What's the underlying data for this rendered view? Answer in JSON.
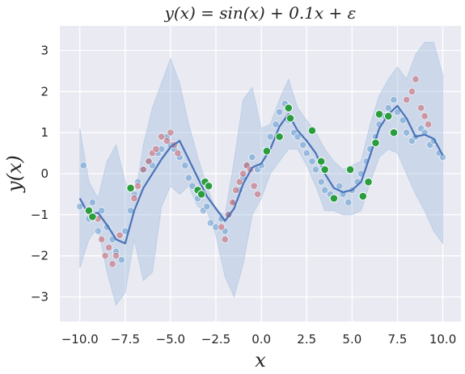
{
  "chart_data": {
    "type": "scatter",
    "title": "y(x) = sin(x) + 0.1x + ε",
    "xlabel": "x",
    "ylabel": "y(x)",
    "xlim": [
      -11.1,
      11.0
    ],
    "ylim": [
      -3.6,
      3.6
    ],
    "xticks": [
      -10.0,
      -7.5,
      -5.0,
      -2.5,
      0.0,
      2.5,
      5.0,
      7.5,
      10.0
    ],
    "xtick_labels": [
      "−10.0",
      "−7.5",
      "−5.0",
      "−2.5",
      "0.0",
      "2.5",
      "5.0",
      "7.5",
      "10.0"
    ],
    "yticks": [
      -3,
      -2,
      -1,
      0,
      1,
      2,
      3
    ],
    "ytick_labels": [
      "−3",
      "−2",
      "−1",
      "0",
      "1",
      "2",
      "3"
    ],
    "grid": true,
    "colors": {
      "background": "#eaeaf2",
      "grid": "#ffffff",
      "band": "#a9c4df",
      "mean_line": "#4a72b8",
      "blue_points": "#6a9fcf",
      "red_points": "#c8555f",
      "green_points": "#2a9d3f"
    },
    "mean_curve": {
      "x": [
        -10,
        -9.5,
        -9,
        -8.5,
        -8,
        -7.5,
        -7,
        -6.5,
        -6,
        -5.5,
        -5,
        -4.5,
        -4,
        -3.5,
        -3,
        -2.5,
        -2,
        -1.5,
        -1,
        -0.5,
        0,
        0.5,
        1,
        1.5,
        2,
        2.5,
        3,
        3.5,
        4,
        4.5,
        5,
        5.5,
        6,
        6.5,
        7,
        7.5,
        8,
        8.5,
        9,
        9.5,
        10
      ],
      "y": [
        -0.6,
        -1.0,
        -0.95,
        -1.25,
        -1.6,
        -1.7,
        -0.9,
        -0.35,
        0.0,
        0.35,
        0.65,
        0.8,
        0.35,
        -0.1,
        -0.55,
        -0.85,
        -1.15,
        -0.85,
        -0.25,
        0.15,
        0.25,
        0.6,
        1.15,
        1.45,
        1.05,
        0.8,
        0.5,
        0.0,
        -0.35,
        -0.45,
        -0.4,
        -0.2,
        0.45,
        1.1,
        1.45,
        1.65,
        1.35,
        0.9,
        0.95,
        0.85,
        0.45
      ]
    },
    "confidence_band": {
      "x": [
        -10,
        -9.5,
        -9,
        -8.5,
        -8,
        -7.5,
        -7,
        -6.5,
        -6,
        -5.5,
        -5,
        -4.5,
        -4,
        -3.5,
        -3,
        -2.5,
        -2,
        -1.5,
        -1,
        -0.5,
        0,
        0.5,
        1,
        1.5,
        2,
        2.5,
        3,
        3.5,
        4,
        4.5,
        5,
        5.5,
        6,
        6.5,
        7,
        7.5,
        8,
        8.5,
        9,
        9.5,
        10
      ],
      "lower": [
        -2.3,
        -1.6,
        -1.3,
        -2.4,
        -3.2,
        -2.9,
        -1.6,
        -2.6,
        -2.4,
        -0.8,
        -0.3,
        -0.5,
        -0.3,
        -0.8,
        -0.9,
        -1.5,
        -2.5,
        -3.0,
        -2.2,
        -1.0,
        -0.6,
        0.0,
        0.3,
        0.6,
        0.6,
        0.2,
        -0.3,
        -0.9,
        -0.9,
        -1.0,
        -1.0,
        -0.9,
        -0.2,
        0.4,
        0.6,
        0.5,
        0.0,
        -0.5,
        -0.9,
        -1.4,
        -1.7
      ],
      "upper": [
        1.1,
        -0.2,
        -0.6,
        0.3,
        0.7,
        -0.2,
        -0.7,
        0.7,
        1.6,
        2.2,
        2.8,
        2.2,
        1.2,
        0.4,
        -0.3,
        -0.9,
        -1.0,
        0.3,
        1.8,
        2.1,
        1.1,
        1.2,
        1.8,
        2.3,
        1.6,
        1.3,
        1.0,
        0.6,
        0.3,
        0.1,
        0.2,
        0.3,
        1.2,
        1.9,
        2.3,
        2.6,
        2.3,
        2.9,
        3.2,
        3.2,
        2.4
      ]
    },
    "points_blue_note": "generated from the same mean curve with noise; shown as many translucent blue markers",
    "series": [
      {
        "role": "blue-scatter",
        "x": [
          -10,
          -9.8,
          -9.5,
          -9.3,
          -9,
          -8.8,
          -8.5,
          -8.2,
          -8,
          -7.7,
          -7.5,
          -7.2,
          -7,
          -6.8,
          -6.5,
          -6.2,
          -6,
          -5.7,
          -5.5,
          -5.2,
          -5,
          -4.8,
          -4.5,
          -4.2,
          -4,
          -3.8,
          -3.5,
          -3.2,
          -3,
          -2.8,
          -2.5,
          -2.2,
          -2,
          -1.8,
          -1.5,
          -1.2,
          -1,
          -0.8,
          -0.5,
          -0.2,
          0,
          0.3,
          0.5,
          0.8,
          1,
          1.3,
          1.5,
          1.8,
          2,
          2.3,
          2.5,
          2.8,
          3,
          3.3,
          3.5,
          3.8,
          4,
          4.3,
          4.5,
          4.8,
          5,
          5.3,
          5.5,
          5.8,
          6,
          6.3,
          6.5,
          6.8,
          7,
          7.3,
          7.5,
          7.8,
          8,
          8.3,
          8.5,
          8.8,
          9,
          9.3,
          9.5,
          9.8,
          10
        ],
        "y": [
          -0.8,
          0.2,
          -1.1,
          -0.7,
          -1.4,
          -0.9,
          -1.3,
          -1.6,
          -1.9,
          -2.1,
          -1.4,
          -0.9,
          -0.5,
          -0.2,
          0.1,
          0.3,
          0.2,
          0.5,
          0.6,
          0.9,
          0.7,
          0.6,
          0.4,
          0.2,
          -0.1,
          -0.3,
          -0.6,
          -0.9,
          -0.8,
          -1.2,
          -1.3,
          -1.1,
          -1.4,
          -1.0,
          -0.7,
          -0.4,
          -0.1,
          0.2,
          0.4,
          0.1,
          0.2,
          0.6,
          0.9,
          1.2,
          1.5,
          1.7,
          1.3,
          1.0,
          0.9,
          0.7,
          0.5,
          0.3,
          0.1,
          -0.2,
          -0.4,
          -0.5,
          -0.6,
          -0.3,
          -0.5,
          -0.7,
          -0.4,
          -0.2,
          0.0,
          0.3,
          0.6,
          0.9,
          1.2,
          1.4,
          1.6,
          1.8,
          1.5,
          1.3,
          1.0,
          0.8,
          0.9,
          1.1,
          1.0,
          0.7,
          0.8,
          0.5,
          0.4
        ]
      },
      {
        "role": "red-scatter",
        "x": [
          -9,
          -8.8,
          -8.6,
          -8.4,
          -8.2,
          -8,
          -7.8,
          -7,
          -6.8,
          -6.5,
          -6.2,
          -6,
          -5.8,
          -5.5,
          -5.2,
          -5,
          -4.8,
          -4.6,
          -2.2,
          -2,
          -1.8,
          -1.6,
          -1.4,
          -1.2,
          -1,
          -0.8,
          -0.6,
          -0.4,
          -0.2,
          8,
          8.3,
          8.5,
          8.8,
          9,
          9.2
        ],
        "y": [
          -1.1,
          -1.6,
          -2.0,
          -1.8,
          -2.2,
          -2.0,
          -1.5,
          -0.6,
          -0.3,
          0.1,
          0.3,
          0.5,
          0.6,
          0.9,
          0.8,
          1.0,
          0.7,
          0.5,
          -1.3,
          -1.6,
          -1.0,
          -0.7,
          -0.4,
          -0.2,
          0.0,
          0.2,
          0.1,
          -0.3,
          -0.5,
          1.8,
          2.0,
          2.3,
          1.6,
          1.4,
          1.2
        ]
      },
      {
        "role": "green-points",
        "x": [
          -9.5,
          -9.3,
          -7.2,
          -3.5,
          -3.3,
          -3.1,
          -2.9,
          0.3,
          1.0,
          1.5,
          1.6,
          2.8,
          3.3,
          3.5,
          4.0,
          4.9,
          5.6,
          5.9,
          6.3,
          6.5,
          7.0,
          7.3
        ],
        "y": [
          -0.9,
          -1.05,
          -0.35,
          -0.4,
          -0.5,
          -0.2,
          -0.3,
          0.55,
          0.9,
          1.6,
          1.35,
          1.05,
          0.3,
          0.1,
          -0.6,
          0.1,
          -0.55,
          -0.2,
          0.75,
          1.45,
          1.4,
          1.0
        ]
      }
    ]
  }
}
